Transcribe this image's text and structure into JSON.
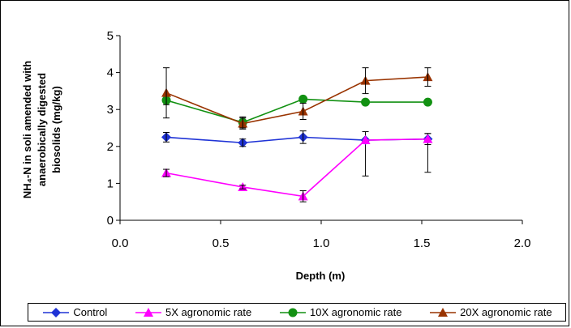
{
  "chart_data": {
    "type": "line",
    "title": "",
    "xlabel": "Depth (m)",
    "ylabel_lines": [
      "NH₄-N in soli amended with",
      "anaerobically digested",
      "biosolids (mg/kg)"
    ],
    "xlim": [
      0,
      2
    ],
    "ylim": [
      0,
      5
    ],
    "xticks": [
      "0.0",
      "0.5",
      "1.0",
      "1.5",
      "2.0"
    ],
    "yticks": [
      "0",
      "1",
      "2",
      "3",
      "4",
      "5"
    ],
    "grid": false,
    "legend_position": "bottom",
    "series": [
      {
        "name": "Control",
        "color": "#1f33d6",
        "marker": "diamond",
        "x": [
          0.23,
          0.61,
          0.91,
          1.22,
          1.53
        ],
        "y": [
          2.25,
          2.1,
          2.25,
          2.17,
          2.2
        ],
        "err": [
          0.13,
          0.1,
          0.17,
          0,
          0.15
        ]
      },
      {
        "name": "5X agronomic rate",
        "color": "#ff00ff",
        "marker": "triangle",
        "x": [
          0.23,
          0.61,
          0.91,
          1.22,
          1.53
        ],
        "y": [
          1.28,
          0.9,
          0.65,
          2.17,
          2.2
        ],
        "err": [
          0.1,
          0.05,
          0.15,
          0,
          0
        ]
      },
      {
        "name": "10X agronomic rate",
        "color": "#129112",
        "marker": "circle",
        "x": [
          0.23,
          0.61,
          0.91,
          1.22,
          1.53
        ],
        "y": [
          3.25,
          2.65,
          3.28,
          3.2,
          3.2
        ],
        "err": [
          0.12,
          0.15,
          0,
          0,
          0
        ]
      },
      {
        "name": "20X agronomic rate",
        "color": "#993300",
        "marker": "triangle",
        "x": [
          0.23,
          0.61,
          0.91,
          1.22,
          1.53
        ],
        "y": [
          3.45,
          2.62,
          2.95,
          3.78,
          3.88
        ],
        "err": [
          0.68,
          0.15,
          0.22,
          0.35,
          0.25
        ]
      }
    ],
    "extra_error_bars": [
      {
        "x": 1.22,
        "center": 1.8,
        "low": 1.2,
        "high": 2.4
      },
      {
        "x": 1.53,
        "center": 1.8,
        "low": 1.3,
        "high": 2.35
      }
    ]
  }
}
